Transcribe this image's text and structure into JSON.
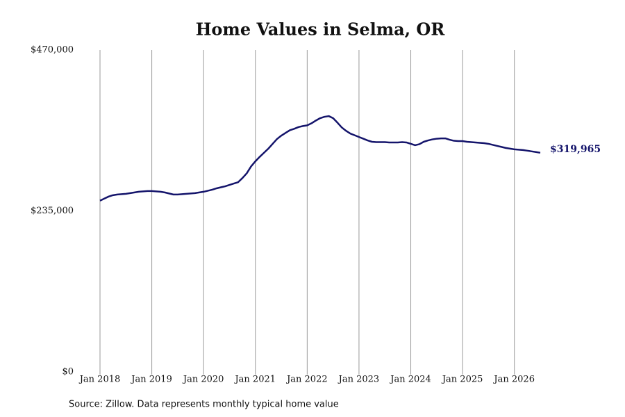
{
  "chart_data": {
    "type": "line",
    "title": "Home Values in Selma, OR",
    "source": "Source: Zillow. Data represents monthly typical home value",
    "x": [
      "2018-01",
      "2018-02",
      "2018-03",
      "2018-04",
      "2018-05",
      "2018-06",
      "2018-07",
      "2018-08",
      "2018-09",
      "2018-10",
      "2018-11",
      "2018-12",
      "2019-01",
      "2019-02",
      "2019-03",
      "2019-04",
      "2019-05",
      "2019-06",
      "2019-07",
      "2019-08",
      "2019-09",
      "2019-10",
      "2019-11",
      "2019-12",
      "2020-01",
      "2020-02",
      "2020-03",
      "2020-04",
      "2020-05",
      "2020-06",
      "2020-07",
      "2020-08",
      "2020-09",
      "2020-10",
      "2020-11",
      "2020-12",
      "2021-01",
      "2021-02",
      "2021-03",
      "2021-04",
      "2021-05",
      "2021-06",
      "2021-07",
      "2021-08",
      "2021-09",
      "2021-10",
      "2021-11",
      "2021-12",
      "2022-01",
      "2022-02",
      "2022-03",
      "2022-04",
      "2022-05",
      "2022-06",
      "2022-07",
      "2022-08",
      "2022-09",
      "2022-10",
      "2022-11",
      "2022-12",
      "2023-01",
      "2023-02",
      "2023-03",
      "2023-04",
      "2023-05",
      "2023-06",
      "2023-07",
      "2023-08",
      "2023-09",
      "2023-10",
      "2023-11",
      "2023-12",
      "2024-01",
      "2024-02",
      "2024-03",
      "2024-04",
      "2024-05",
      "2024-06",
      "2024-07",
      "2024-08",
      "2024-09",
      "2024-10",
      "2024-11",
      "2024-12",
      "2025-01",
      "2025-02",
      "2025-03",
      "2025-04",
      "2025-05",
      "2025-06",
      "2025-07",
      "2025-08",
      "2025-09",
      "2025-10",
      "2025-11",
      "2025-12",
      "2026-01",
      "2026-02",
      "2026-03",
      "2026-04",
      "2026-05",
      "2026-06",
      "2026-07"
    ],
    "series": [
      {
        "name": "Home value",
        "color": "#14146b",
        "values": [
          250000,
          253000,
          256000,
          258000,
          259000,
          259500,
          260000,
          261000,
          262000,
          263000,
          263500,
          264000,
          264000,
          263500,
          263000,
          262000,
          260500,
          259000,
          259000,
          259500,
          260000,
          260500,
          261000,
          262000,
          263000,
          264500,
          266000,
          268000,
          269500,
          271000,
          273000,
          275000,
          277000,
          283000,
          290000,
          300000,
          307500,
          314000,
          320000,
          326000,
          333000,
          340000,
          345000,
          349000,
          353000,
          355000,
          357500,
          359000,
          360000,
          363000,
          367000,
          370500,
          372500,
          373500,
          370500,
          364000,
          357000,
          352000,
          348000,
          345500,
          343000,
          340500,
          338000,
          336000,
          335500,
          335500,
          335500,
          335000,
          335000,
          335000,
          335500,
          335000,
          333000,
          331000,
          332500,
          336000,
          338000,
          339500,
          340500,
          341000,
          341000,
          339000,
          337500,
          337000,
          337000,
          336000,
          335500,
          335000,
          334500,
          334000,
          333000,
          331500,
          330000,
          328500,
          327000,
          326000,
          325000,
          324500,
          324000,
          323000,
          322000,
          321000,
          319965
        ]
      }
    ],
    "last_value_label": "$319,965",
    "xlim": [
      "2018-01",
      "2026-07"
    ],
    "xticks": [
      {
        "value": "2018-01",
        "label": "Jan 2018"
      },
      {
        "value": "2019-01",
        "label": "Jan 2019"
      },
      {
        "value": "2020-01",
        "label": "Jan 2020"
      },
      {
        "value": "2021-01",
        "label": "Jan 2021"
      },
      {
        "value": "2022-01",
        "label": "Jan 2022"
      },
      {
        "value": "2023-01",
        "label": "Jan 2023"
      },
      {
        "value": "2024-01",
        "label": "Jan 2024"
      },
      {
        "value": "2025-01",
        "label": "Jan 2025"
      },
      {
        "value": "2026-01",
        "label": "Jan 2026"
      }
    ],
    "ylim": [
      0,
      470000
    ],
    "yticks": [
      {
        "value": 0,
        "label": "$0"
      },
      {
        "value": 235000,
        "label": "$235,000"
      },
      {
        "value": 470000,
        "label": "$470,000"
      }
    ],
    "grid": "x"
  }
}
